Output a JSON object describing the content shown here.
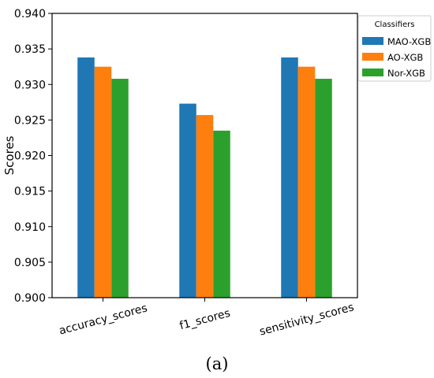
{
  "chart_data": {
    "type": "bar",
    "categories": [
      "accuracy_scores",
      "f1_scores",
      "sensitivity_scores"
    ],
    "series": [
      {
        "name": "MAO-XGB",
        "values": [
          0.9338,
          0.9273,
          0.9338
        ]
      },
      {
        "name": "AO-XGB",
        "values": [
          0.9325,
          0.9257,
          0.9325
        ]
      },
      {
        "name": "Nor-XGB",
        "values": [
          0.9308,
          0.9235,
          0.9308
        ]
      }
    ],
    "colors": [
      "#1f77b4",
      "#ff7f0e",
      "#2ca02c"
    ],
    "ylabel": "Scores",
    "xlabel": "",
    "ylim": [
      0.9,
      0.94
    ],
    "yticks": [
      "0.900",
      "0.905",
      "0.910",
      "0.915",
      "0.920",
      "0.925",
      "0.930",
      "0.935",
      "0.940"
    ],
    "grid": false,
    "legend": {
      "title": "Classifiers",
      "placement": "outside-top-right"
    }
  },
  "caption": "(a)"
}
